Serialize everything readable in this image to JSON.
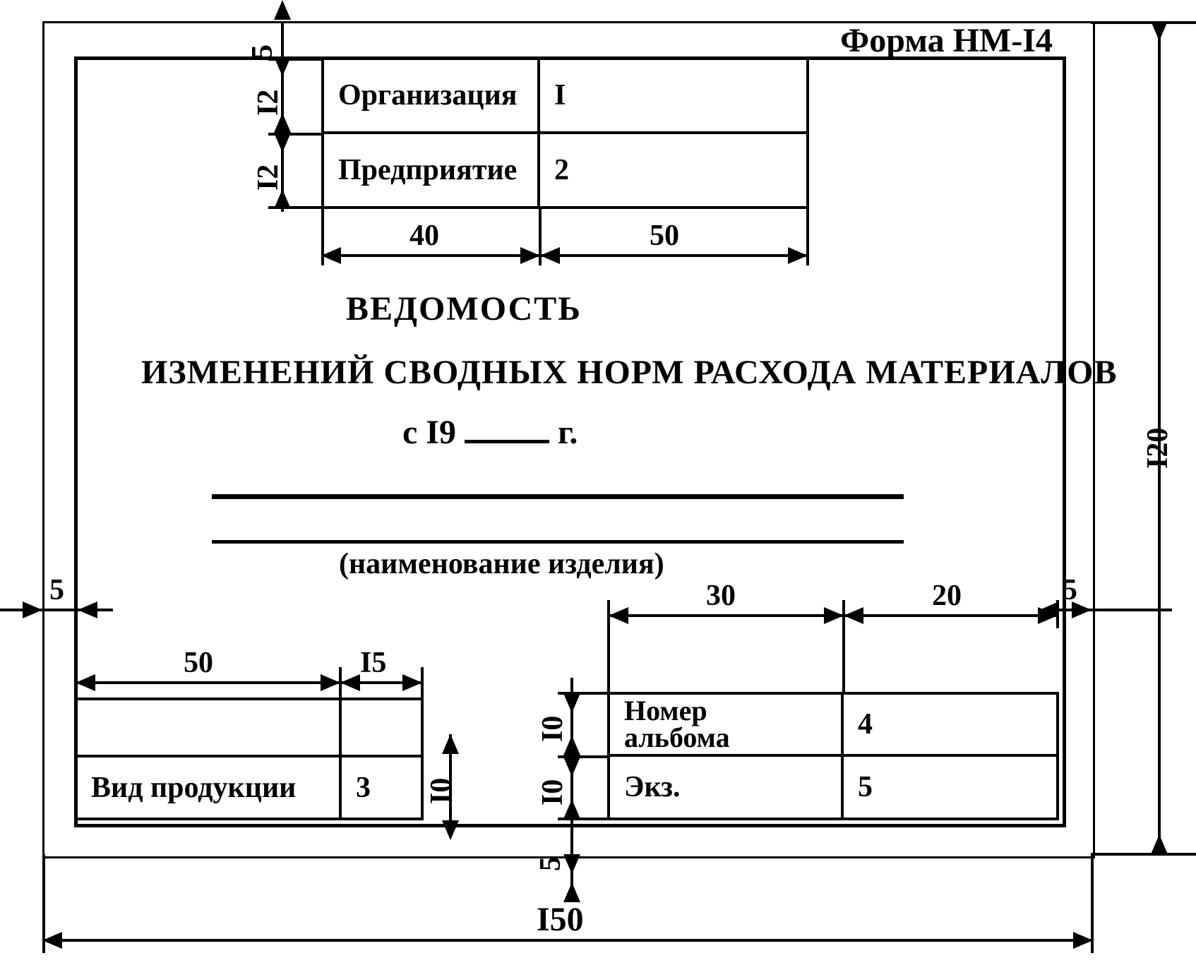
{
  "form_label": "Форма НМ-I4",
  "top_table": {
    "row1": {
      "label": "Организация",
      "value": "I"
    },
    "row2": {
      "label": "Предприятие",
      "value": "2"
    }
  },
  "title1": "ВЕДОМОСТЬ",
  "title2": "ИЗМЕНЕНИЙ СВОДНЫХ НОРМ РАСХОДА МАТЕРИАЛОВ",
  "title3_prefix": "с  I9",
  "title3_suffix": "г.",
  "subcaption": "(наименование изделия)",
  "bottom_left": {
    "label": "Вид продукции",
    "value": "3"
  },
  "bottom_right": {
    "row1": {
      "label": "Номер альбома",
      "value": "4"
    },
    "row2": {
      "label": "Экз.",
      "value": "5"
    }
  },
  "dims": {
    "d5_top": "5",
    "d12a": "I2",
    "d12b": "I2",
    "d40": "40",
    "d50_top": "50",
    "d5_left": "5",
    "d5_right": "5",
    "d120": "I20",
    "d50_bl": "50",
    "d15": "I5",
    "d10_bl": "I0",
    "d30": "30",
    "d20": "20",
    "d10_br_a": "I0",
    "d10_br_b": "I0",
    "d5_bottom": "5",
    "d150": "I50"
  },
  "style": {
    "line_weight_outer": 5,
    "line_weight_inner": 4,
    "font_main": 42,
    "font_title": 48,
    "color": "#000000",
    "bg": "#ffffff"
  }
}
